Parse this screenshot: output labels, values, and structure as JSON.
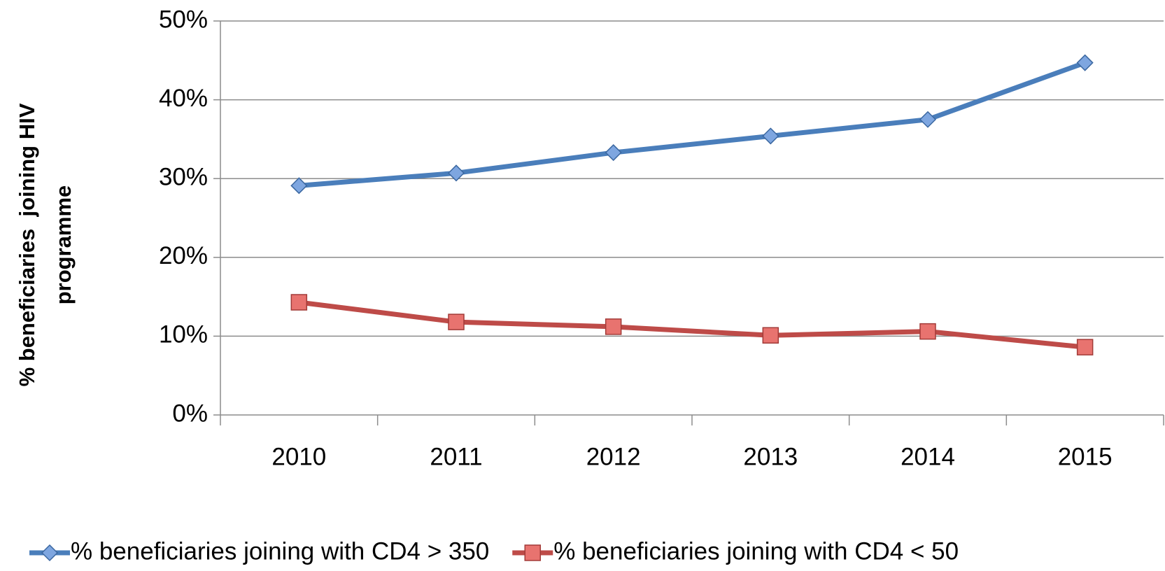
{
  "chart_data": {
    "type": "line",
    "y_label": "% beneficiaries  joining HIV programme",
    "categories": [
      "2010",
      "2011",
      "2012",
      "2013",
      "2014",
      "2015"
    ],
    "series": [
      {
        "name": "% beneficiaries joining with CD4 > 350",
        "color": "#4a7ebb",
        "marker": "diamond",
        "values": [
          29.1,
          30.7,
          33.3,
          35.4,
          37.5,
          44.7
        ]
      },
      {
        "name": "% beneficiaries joining with CD4 < 50",
        "color": "#be4b48",
        "marker": "square",
        "values": [
          14.3,
          11.8,
          11.2,
          10.1,
          10.6,
          8.6
        ]
      }
    ],
    "ylim": [
      0,
      50
    ],
    "yticks": [
      {
        "value": 0,
        "label": "0%"
      },
      {
        "value": 10,
        "label": "10%"
      },
      {
        "value": 20,
        "label": "20%"
      },
      {
        "value": 30,
        "label": "30%"
      },
      {
        "value": 40,
        "label": "40%"
      },
      {
        "value": 50,
        "label": "50%"
      }
    ],
    "grid": true,
    "legend": "bottom"
  }
}
